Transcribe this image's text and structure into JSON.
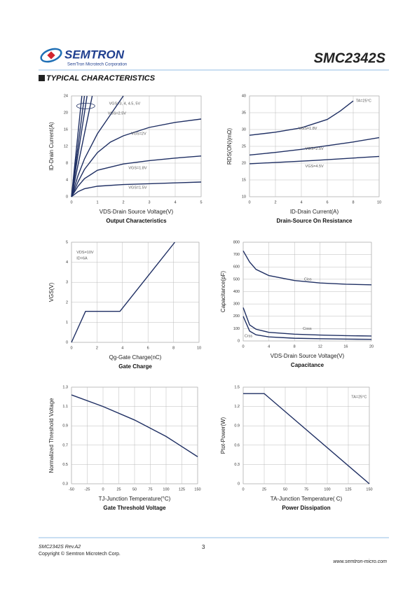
{
  "header": {
    "logo": "SEMTRON",
    "company": "SemTron Microtech Corporation",
    "part": "SMC2342S",
    "section": "TYPICAL CHARACTERISTICS"
  },
  "footer": {
    "rev": "SMC2342S Rev.A2",
    "copyright": "Copyright © Semtron Microtech Corp.",
    "page": 3,
    "website": "www.semtron-micro.com"
  },
  "chart_data": [
    {
      "type": "line",
      "title": "Output Characteristics",
      "xlabel": "VDS-Drain Source Voltage(V)",
      "ylabel": "ID-Drain Current(A)",
      "xlim": [
        0,
        5
      ],
      "xticks": [
        0,
        1,
        2,
        3,
        4,
        5
      ],
      "ylim": [
        0,
        24
      ],
      "yticks": [
        0,
        4,
        8,
        12,
        16,
        20,
        24
      ],
      "grid": true,
      "series": [
        {
          "name": "VGS=3, 4, 4.5, 5V",
          "color": "#1f2f63",
          "x": [
            0,
            0.4
          ],
          "values": [
            0,
            24
          ]
        },
        {
          "color": "#1f2f63",
          "x": [
            0,
            0.5
          ],
          "values": [
            0,
            24
          ]
        },
        {
          "color": "#1f2f63",
          "x": [
            0,
            0.6
          ],
          "values": [
            0,
            24
          ]
        },
        {
          "color": "#1f2f63",
          "x": [
            0,
            0.8
          ],
          "values": [
            0,
            24
          ]
        },
        {
          "name": "VGS=2.5V",
          "color": "#1f2f63",
          "x": [
            0,
            0.25,
            0.5,
            1,
            1.5,
            2
          ],
          "values": [
            0,
            5,
            9,
            15,
            19.5,
            24
          ]
        },
        {
          "name": "VGS=2V",
          "color": "#1f2f63",
          "x": [
            0,
            0.25,
            0.5,
            1,
            1.5,
            2,
            3,
            4,
            5
          ],
          "values": [
            0,
            3.5,
            6.5,
            10.5,
            13,
            14.5,
            16.5,
            17.7,
            18.5
          ]
        },
        {
          "name": "VGS=1.8V",
          "color": "#1f2f63",
          "x": [
            0,
            0.25,
            0.5,
            1,
            2,
            3,
            4,
            5
          ],
          "values": [
            0,
            2.5,
            4.3,
            6.3,
            7.8,
            8.6,
            9.2,
            9.7
          ]
        },
        {
          "name": "VGS=1.5V",
          "color": "#1f2f63",
          "x": [
            0,
            0.25,
            0.5,
            1,
            2,
            3,
            4,
            5
          ],
          "values": [
            0,
            1.2,
            1.9,
            2.5,
            2.9,
            3.1,
            3.3,
            3.5
          ]
        }
      ]
    },
    {
      "type": "line",
      "title": "Drain-Source On Resistance",
      "xlabel": "ID-Drain Current(A)",
      "ylabel": "RDS(ON)(mΩ)",
      "xlim": [
        0,
        10
      ],
      "xticks": [
        0,
        2,
        4,
        6,
        8,
        10
      ],
      "ylim": [
        10,
        40
      ],
      "yticks": [
        10,
        15,
        20,
        25,
        30,
        35,
        40
      ],
      "grid": true,
      "annotations": [
        "TA=25°C"
      ],
      "series": [
        {
          "name": "VGS=1.8V",
          "color": "#1f2f63",
          "x": [
            0,
            2,
            4,
            6,
            7,
            8
          ],
          "values": [
            28.3,
            29.2,
            30.5,
            33,
            35.5,
            38.5
          ]
        },
        {
          "name": "VGS=2.5V",
          "color": "#1f2f63",
          "x": [
            0,
            2,
            4,
            6,
            8,
            10
          ],
          "values": [
            22.4,
            23.2,
            24.1,
            25.2,
            26.3,
            27.6
          ]
        },
        {
          "name": "VGS=4.5V",
          "color": "#1f2f63",
          "x": [
            0,
            5,
            10
          ],
          "values": [
            19.8,
            20.8,
            22
          ]
        }
      ]
    },
    {
      "type": "line",
      "title": "Gate Charge",
      "xlabel": "Qg-Gate Charge(nC)",
      "ylabel": "VGS(V)",
      "xlim": [
        0,
        10
      ],
      "xticks": [
        0,
        2,
        4,
        6,
        8,
        10
      ],
      "ylim": [
        0,
        5
      ],
      "yticks": [
        0,
        1,
        2,
        3,
        4,
        5
      ],
      "grid": true,
      "annotations": [
        "VDS=10V",
        "ID=6A"
      ],
      "series": [
        {
          "color": "#1f2f63",
          "x": [
            0,
            1.1,
            3.8,
            8.1
          ],
          "values": [
            0,
            1.55,
            1.55,
            5
          ]
        }
      ]
    },
    {
      "type": "line",
      "title": "Capacitance",
      "xlabel": "VDS-Drain Source Voltage(V)",
      "ylabel": "Capacitance(pF)",
      "xlim": [
        0,
        20
      ],
      "xticks": [
        0,
        4,
        8,
        12,
        16,
        20
      ],
      "ylim": [
        0,
        800
      ],
      "yticks": [
        0,
        100,
        200,
        300,
        400,
        500,
        600,
        700,
        800
      ],
      "grid": true,
      "series": [
        {
          "name": "Ciss",
          "color": "#1f2f63",
          "x": [
            0,
            1,
            2,
            4,
            8,
            12,
            16,
            20
          ],
          "values": [
            730,
            640,
            580,
            530,
            490,
            470,
            460,
            455
          ]
        },
        {
          "name": "Coss",
          "color": "#1f2f63",
          "x": [
            0,
            1,
            2,
            4,
            8,
            12,
            16,
            20
          ],
          "values": [
            270,
            130,
            95,
            70,
            55,
            48,
            43,
            40
          ]
        },
        {
          "name": "Crss",
          "color": "#1f2f63",
          "x": [
            0,
            1,
            2,
            4,
            8,
            12,
            16,
            20
          ],
          "values": [
            200,
            80,
            50,
            33,
            22,
            18,
            15,
            13
          ]
        }
      ]
    },
    {
      "type": "line",
      "title": "Gate Threshold Voltage",
      "xlabel": "TJ-Junction Temperature(°C)",
      "ylabel": "Normalized Threshold Voltage",
      "xlim": [
        -50,
        150
      ],
      "xticks": [
        -50,
        -25,
        0,
        25,
        50,
        75,
        100,
        125,
        150
      ],
      "ylim": [
        0.3,
        1.3
      ],
      "yticks": [
        0.3,
        0.5,
        0.7,
        0.9,
        1.1,
        1.3
      ],
      "grid": true,
      "series": [
        {
          "color": "#1f2f63",
          "x": [
            -50,
            0,
            50,
            100,
            150
          ],
          "values": [
            1.22,
            1.1,
            0.96,
            0.79,
            0.58
          ]
        }
      ]
    },
    {
      "type": "line",
      "title": "Power Dissipation",
      "xlabel": "TA-Junction Temperature( C)",
      "ylabel": "Ptot-Power(W)",
      "xlim": [
        0,
        150
      ],
      "xticks": [
        0,
        25,
        50,
        75,
        100,
        125,
        150
      ],
      "ylim": [
        0,
        1.5
      ],
      "yticks": [
        0,
        0.3,
        0.6,
        0.9,
        1.2,
        1.5
      ],
      "grid": true,
      "annotations": [
        "TA=25°C"
      ],
      "series": [
        {
          "color": "#1f2f63",
          "x": [
            0,
            25,
            150
          ],
          "values": [
            1.4,
            1.4,
            0
          ]
        }
      ]
    }
  ]
}
